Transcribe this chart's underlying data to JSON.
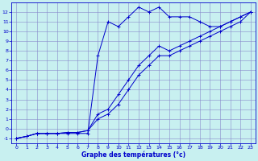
{
  "title": "",
  "xlabel": "Graphe des températures (°c)",
  "ylabel": "",
  "background_color": "#c8f0f0",
  "grid_color": "#8888cc",
  "line_color": "#0000cc",
  "xlim": [
    -0.5,
    23.5
  ],
  "ylim": [
    -1.5,
    13.0
  ],
  "xticks": [
    0,
    1,
    2,
    3,
    4,
    5,
    6,
    7,
    8,
    9,
    10,
    11,
    12,
    13,
    14,
    15,
    16,
    17,
    18,
    19,
    20,
    21,
    22,
    23
  ],
  "yticks": [
    -1,
    0,
    1,
    2,
    3,
    4,
    5,
    6,
    7,
    8,
    9,
    10,
    11,
    12
  ],
  "series_top": {
    "x": [
      0,
      1,
      2,
      3,
      4,
      5,
      6,
      7,
      8,
      9,
      10,
      11,
      12,
      13,
      14,
      15,
      16,
      17,
      18,
      19,
      20,
      21,
      22,
      23
    ],
    "y": [
      -1,
      -0.8,
      -0.5,
      -0.5,
      -0.5,
      -0.5,
      -0.5,
      -0.5,
      7.5,
      11.0,
      10.5,
      11.5,
      12.5,
      12.0,
      12.5,
      11.5,
      11.5,
      11.5,
      11.0,
      10.5,
      10.5,
      11.0,
      11.5,
      12.0
    ]
  },
  "series_mid": {
    "x": [
      0,
      1,
      2,
      3,
      4,
      5,
      6,
      7,
      8,
      9,
      10,
      11,
      12,
      13,
      14,
      15,
      16,
      17,
      18,
      19,
      20,
      21,
      22,
      23
    ],
    "y": [
      -1,
      -0.8,
      -0.5,
      -0.5,
      -0.5,
      -0.4,
      -0.4,
      -0.2,
      1.5,
      2.0,
      3.5,
      5.0,
      6.5,
      7.5,
      8.5,
      8.0,
      8.5,
      9.0,
      9.5,
      10.0,
      10.5,
      11.0,
      11.5,
      12.0
    ]
  },
  "series_bot": {
    "x": [
      0,
      1,
      2,
      3,
      4,
      5,
      6,
      7,
      8,
      9,
      10,
      11,
      12,
      13,
      14,
      15,
      16,
      17,
      18,
      19,
      20,
      21,
      22,
      23
    ],
    "y": [
      -1,
      -0.8,
      -0.5,
      -0.5,
      -0.5,
      -0.4,
      -0.4,
      -0.2,
      1.0,
      1.5,
      2.5,
      4.0,
      5.5,
      6.5,
      7.5,
      7.5,
      8.0,
      8.5,
      9.0,
      9.5,
      10.0,
      10.5,
      11.0,
      12.0
    ]
  }
}
